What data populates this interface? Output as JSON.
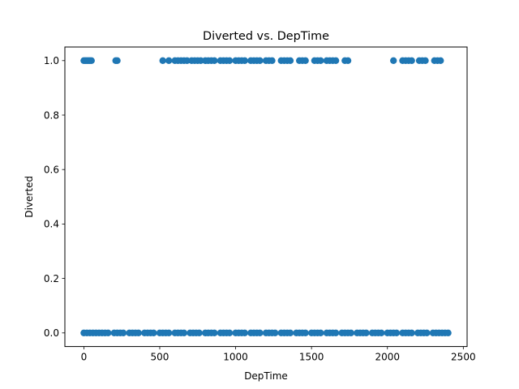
{
  "chart_data": {
    "type": "scatter",
    "title": "Diverted vs. DepTime",
    "xlabel": "DepTime",
    "ylabel": "Diverted",
    "xlim": [
      -125,
      2525
    ],
    "ylim": [
      -0.05,
      1.05
    ],
    "x_ticks": [
      0,
      500,
      1000,
      1500,
      2000,
      2500
    ],
    "x_tick_labels": [
      "0",
      "500",
      "1000",
      "1500",
      "2000",
      "2500"
    ],
    "y_ticks": [
      0.0,
      0.2,
      0.4,
      0.6,
      0.8,
      1.0
    ],
    "y_tick_labels": [
      "0.0",
      "0.2",
      "0.4",
      "0.6",
      "0.8",
      "1.0"
    ],
    "grid": false,
    "marker_color": "#1f77b4",
    "series": [
      {
        "values": [
          {
            "x": 0,
            "y": 1
          },
          {
            "x": 10,
            "y": 1
          },
          {
            "x": 20,
            "y": 1
          },
          {
            "x": 30,
            "y": 1
          },
          {
            "x": 40,
            "y": 1
          },
          {
            "x": 50,
            "y": 1
          },
          {
            "x": 210,
            "y": 1
          },
          {
            "x": 220,
            "y": 1
          },
          {
            "x": 520,
            "y": 1
          },
          {
            "x": 560,
            "y": 1
          },
          {
            "x": 600,
            "y": 1
          },
          {
            "x": 620,
            "y": 1
          },
          {
            "x": 640,
            "y": 1
          },
          {
            "x": 660,
            "y": 1
          },
          {
            "x": 680,
            "y": 1
          },
          {
            "x": 710,
            "y": 1
          },
          {
            "x": 730,
            "y": 1
          },
          {
            "x": 750,
            "y": 1
          },
          {
            "x": 770,
            "y": 1
          },
          {
            "x": 800,
            "y": 1
          },
          {
            "x": 820,
            "y": 1
          },
          {
            "x": 840,
            "y": 1
          },
          {
            "x": 860,
            "y": 1
          },
          {
            "x": 900,
            "y": 1
          },
          {
            "x": 920,
            "y": 1
          },
          {
            "x": 940,
            "y": 1
          },
          {
            "x": 960,
            "y": 1
          },
          {
            "x": 1000,
            "y": 1
          },
          {
            "x": 1020,
            "y": 1
          },
          {
            "x": 1040,
            "y": 1
          },
          {
            "x": 1060,
            "y": 1
          },
          {
            "x": 1100,
            "y": 1
          },
          {
            "x": 1120,
            "y": 1
          },
          {
            "x": 1140,
            "y": 1
          },
          {
            "x": 1160,
            "y": 1
          },
          {
            "x": 1200,
            "y": 1
          },
          {
            "x": 1220,
            "y": 1
          },
          {
            "x": 1240,
            "y": 1
          },
          {
            "x": 1300,
            "y": 1
          },
          {
            "x": 1320,
            "y": 1
          },
          {
            "x": 1340,
            "y": 1
          },
          {
            "x": 1360,
            "y": 1
          },
          {
            "x": 1420,
            "y": 1
          },
          {
            "x": 1440,
            "y": 1
          },
          {
            "x": 1460,
            "y": 1
          },
          {
            "x": 1520,
            "y": 1
          },
          {
            "x": 1540,
            "y": 1
          },
          {
            "x": 1560,
            "y": 1
          },
          {
            "x": 1600,
            "y": 1
          },
          {
            "x": 1620,
            "y": 1
          },
          {
            "x": 1640,
            "y": 1
          },
          {
            "x": 1660,
            "y": 1
          },
          {
            "x": 1720,
            "y": 1
          },
          {
            "x": 1740,
            "y": 1
          },
          {
            "x": 2040,
            "y": 1
          },
          {
            "x": 2100,
            "y": 1
          },
          {
            "x": 2120,
            "y": 1
          },
          {
            "x": 2140,
            "y": 1
          },
          {
            "x": 2160,
            "y": 1
          },
          {
            "x": 2210,
            "y": 1
          },
          {
            "x": 2230,
            "y": 1
          },
          {
            "x": 2250,
            "y": 1
          },
          {
            "x": 2310,
            "y": 1
          },
          {
            "x": 2330,
            "y": 1
          },
          {
            "x": 2350,
            "y": 1
          },
          {
            "x": 0,
            "y": 0
          },
          {
            "x": 20,
            "y": 0
          },
          {
            "x": 40,
            "y": 0
          },
          {
            "x": 60,
            "y": 0
          },
          {
            "x": 80,
            "y": 0
          },
          {
            "x": 100,
            "y": 0
          },
          {
            "x": 120,
            "y": 0
          },
          {
            "x": 140,
            "y": 0
          },
          {
            "x": 160,
            "y": 0
          },
          {
            "x": 200,
            "y": 0
          },
          {
            "x": 220,
            "y": 0
          },
          {
            "x": 240,
            "y": 0
          },
          {
            "x": 260,
            "y": 0
          },
          {
            "x": 300,
            "y": 0
          },
          {
            "x": 320,
            "y": 0
          },
          {
            "x": 340,
            "y": 0
          },
          {
            "x": 360,
            "y": 0
          },
          {
            "x": 400,
            "y": 0
          },
          {
            "x": 420,
            "y": 0
          },
          {
            "x": 440,
            "y": 0
          },
          {
            "x": 460,
            "y": 0
          },
          {
            "x": 500,
            "y": 0
          },
          {
            "x": 520,
            "y": 0
          },
          {
            "x": 540,
            "y": 0
          },
          {
            "x": 560,
            "y": 0
          },
          {
            "x": 600,
            "y": 0
          },
          {
            "x": 620,
            "y": 0
          },
          {
            "x": 640,
            "y": 0
          },
          {
            "x": 660,
            "y": 0
          },
          {
            "x": 700,
            "y": 0
          },
          {
            "x": 720,
            "y": 0
          },
          {
            "x": 740,
            "y": 0
          },
          {
            "x": 760,
            "y": 0
          },
          {
            "x": 800,
            "y": 0
          },
          {
            "x": 820,
            "y": 0
          },
          {
            "x": 840,
            "y": 0
          },
          {
            "x": 860,
            "y": 0
          },
          {
            "x": 900,
            "y": 0
          },
          {
            "x": 920,
            "y": 0
          },
          {
            "x": 940,
            "y": 0
          },
          {
            "x": 960,
            "y": 0
          },
          {
            "x": 1000,
            "y": 0
          },
          {
            "x": 1020,
            "y": 0
          },
          {
            "x": 1040,
            "y": 0
          },
          {
            "x": 1060,
            "y": 0
          },
          {
            "x": 1100,
            "y": 0
          },
          {
            "x": 1120,
            "y": 0
          },
          {
            "x": 1140,
            "y": 0
          },
          {
            "x": 1160,
            "y": 0
          },
          {
            "x": 1200,
            "y": 0
          },
          {
            "x": 1220,
            "y": 0
          },
          {
            "x": 1240,
            "y": 0
          },
          {
            "x": 1260,
            "y": 0
          },
          {
            "x": 1300,
            "y": 0
          },
          {
            "x": 1320,
            "y": 0
          },
          {
            "x": 1340,
            "y": 0
          },
          {
            "x": 1360,
            "y": 0
          },
          {
            "x": 1400,
            "y": 0
          },
          {
            "x": 1420,
            "y": 0
          },
          {
            "x": 1440,
            "y": 0
          },
          {
            "x": 1460,
            "y": 0
          },
          {
            "x": 1500,
            "y": 0
          },
          {
            "x": 1520,
            "y": 0
          },
          {
            "x": 1540,
            "y": 0
          },
          {
            "x": 1560,
            "y": 0
          },
          {
            "x": 1600,
            "y": 0
          },
          {
            "x": 1620,
            "y": 0
          },
          {
            "x": 1640,
            "y": 0
          },
          {
            "x": 1660,
            "y": 0
          },
          {
            "x": 1700,
            "y": 0
          },
          {
            "x": 1720,
            "y": 0
          },
          {
            "x": 1740,
            "y": 0
          },
          {
            "x": 1760,
            "y": 0
          },
          {
            "x": 1800,
            "y": 0
          },
          {
            "x": 1820,
            "y": 0
          },
          {
            "x": 1840,
            "y": 0
          },
          {
            "x": 1860,
            "y": 0
          },
          {
            "x": 1900,
            "y": 0
          },
          {
            "x": 1920,
            "y": 0
          },
          {
            "x": 1940,
            "y": 0
          },
          {
            "x": 1960,
            "y": 0
          },
          {
            "x": 2000,
            "y": 0
          },
          {
            "x": 2020,
            "y": 0
          },
          {
            "x": 2040,
            "y": 0
          },
          {
            "x": 2060,
            "y": 0
          },
          {
            "x": 2100,
            "y": 0
          },
          {
            "x": 2120,
            "y": 0
          },
          {
            "x": 2140,
            "y": 0
          },
          {
            "x": 2160,
            "y": 0
          },
          {
            "x": 2200,
            "y": 0
          },
          {
            "x": 2220,
            "y": 0
          },
          {
            "x": 2240,
            "y": 0
          },
          {
            "x": 2260,
            "y": 0
          },
          {
            "x": 2300,
            "y": 0
          },
          {
            "x": 2320,
            "y": 0
          },
          {
            "x": 2340,
            "y": 0
          },
          {
            "x": 2360,
            "y": 0
          },
          {
            "x": 2380,
            "y": 0
          },
          {
            "x": 2400,
            "y": 0
          }
        ]
      }
    ]
  }
}
